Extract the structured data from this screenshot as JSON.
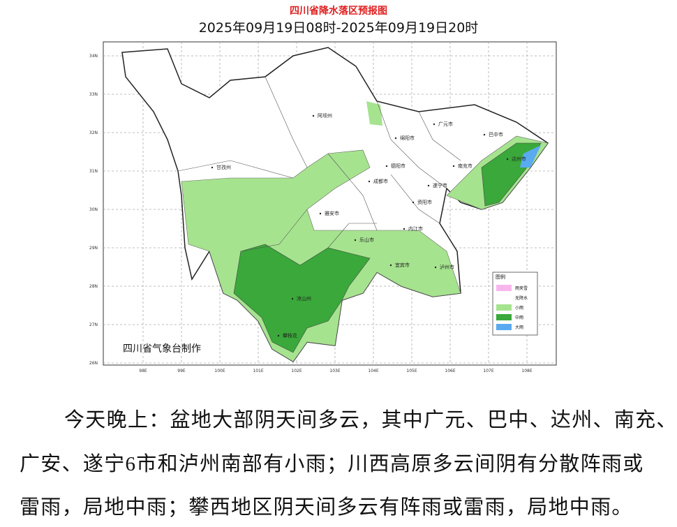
{
  "header": {
    "title": "四川省降水落区预报图",
    "subtitle": "2025年09月19日08时-2025年09月19日20时"
  },
  "map": {
    "y_axis_labels": [
      "34N",
      "33N",
      "32N",
      "31N",
      "30N",
      "29N",
      "28N",
      "27N",
      "26N"
    ],
    "x_axis_labels": [
      "98E",
      "99E",
      "100E",
      "101E",
      "102E",
      "103E",
      "104E",
      "105E",
      "106E",
      "107E",
      "108E"
    ],
    "places": [
      "阿坝州",
      "广元市",
      "绵阳市",
      "巴中市",
      "达州市",
      "甘孜州",
      "德阳市",
      "南充市",
      "成都市",
      "遂宁市",
      "雅安市",
      "资阳市",
      "乐山市",
      "内江市",
      "宜宾市",
      "泸州市",
      "凉山州",
      "攀枝花"
    ],
    "credit": "四川省气象台制作"
  },
  "legend": {
    "title": "图例",
    "items": [
      {
        "label": "雨夹雪",
        "color": "#f7b6ee"
      },
      {
        "label": "无降水"
      },
      {
        "label": "小雨",
        "color": "#a6e38f"
      },
      {
        "label": "中雨",
        "color": "#3aa83a"
      },
      {
        "label": "大雨",
        "color": "#5aaaf0"
      }
    ]
  },
  "paragraph": [
    "今天晚上：盆地大部阴天间多云，其中广元、巴中、达州、南充、",
    "广安、遂宁6市和泸州南部有小雨；川西高原多云间阴有分散阵雨或",
    "雷雨，局地中雨；攀西地区阴天间多云有阵雨或雷雨，局地中雨。"
  ]
}
